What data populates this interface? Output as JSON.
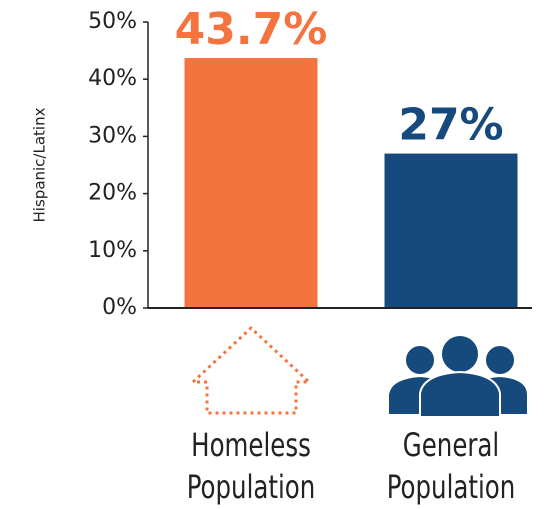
{
  "chart_data": {
    "type": "bar",
    "y_label": "Hispanic/Latinx",
    "categories": [
      "Homeless Population",
      "General Population"
    ],
    "values": [
      43.7,
      27
    ],
    "value_labels": [
      "43.7%",
      "27%"
    ],
    "colors": [
      "#f47440",
      "#174a7c"
    ],
    "ylim": [
      0,
      50
    ],
    "yticks": [
      {
        "value": 0,
        "label": "0%"
      },
      {
        "value": 10,
        "label": "10%"
      },
      {
        "value": 20,
        "label": "20%"
      },
      {
        "value": 30,
        "label": "30%"
      },
      {
        "value": 40,
        "label": "40%"
      },
      {
        "value": 50,
        "label": "50%"
      }
    ]
  }
}
